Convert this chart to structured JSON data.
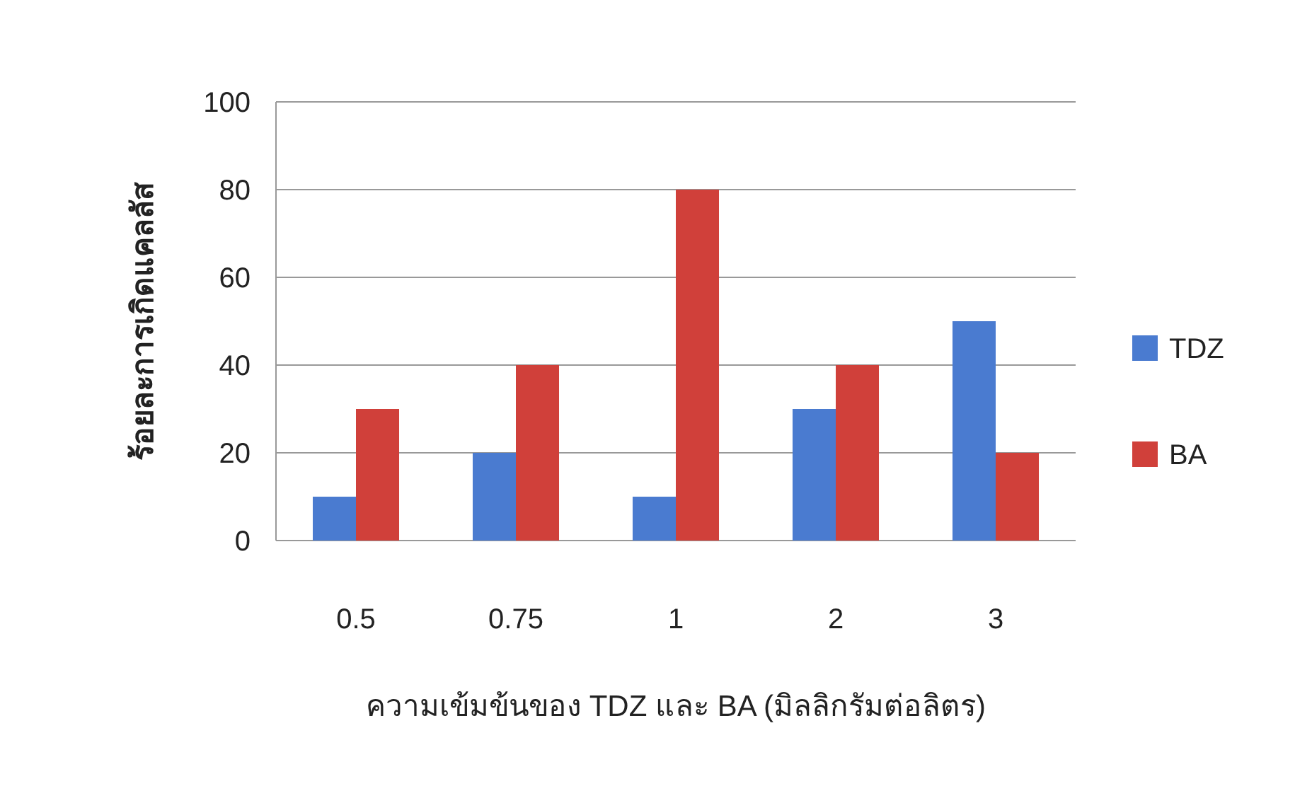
{
  "chart_data": {
    "type": "bar",
    "xlabel": "ความเข้มข้นของ TDZ และ BA (มิลลิกรัมต่อลิตร)",
    "ylabel": "ร้อยละการเกิดแคลลัส",
    "categories": [
      "0.5",
      "0.75",
      "1",
      "2",
      "3"
    ],
    "series": [
      {
        "name": "TDZ",
        "color": "#4a7bd0",
        "values": [
          10,
          20,
          10,
          30,
          50
        ]
      },
      {
        "name": "BA",
        "color": "#d0403a",
        "values": [
          30,
          40,
          80,
          40,
          20
        ]
      }
    ],
    "ylim": [
      0,
      100
    ],
    "yticks": [
      0,
      20,
      40,
      60,
      80,
      100
    ],
    "grid": "y",
    "legend": "right"
  }
}
